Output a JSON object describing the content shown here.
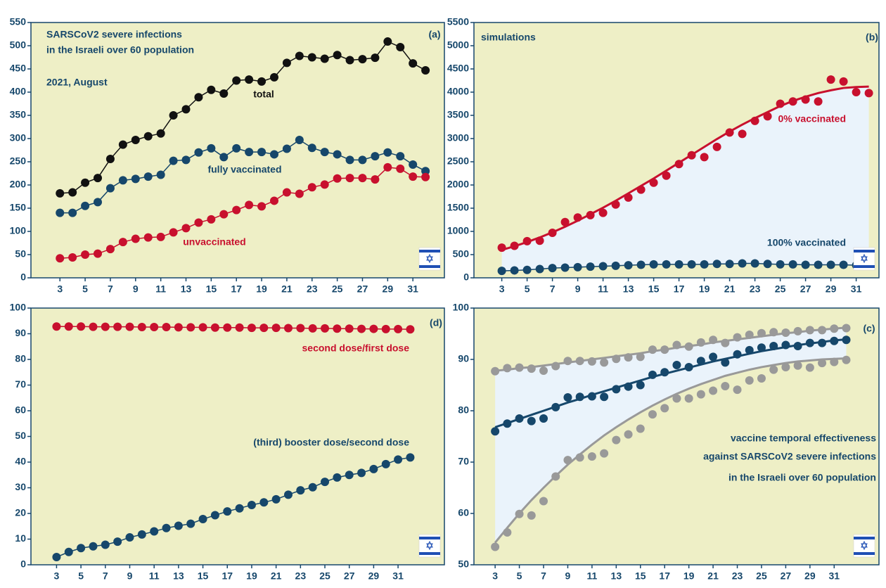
{
  "chart_data": [
    {
      "type": "line",
      "panel_label": "(a)",
      "annotations": [
        "SARSCoV2 severe infections",
        "in the Israeli over 60 population",
        "2021, August"
      ],
      "x": [
        3,
        4,
        5,
        6,
        7,
        8,
        9,
        10,
        11,
        12,
        13,
        14,
        15,
        16,
        17,
        18,
        19,
        20,
        21,
        22,
        23,
        24,
        25,
        26,
        27,
        28,
        29,
        30,
        31,
        32
      ],
      "xlim": [
        0.7,
        33.5
      ],
      "xticks": [
        3,
        5,
        7,
        9,
        11,
        13,
        15,
        17,
        19,
        21,
        23,
        25,
        27,
        29,
        31
      ],
      "ylim": [
        0,
        550
      ],
      "yticks": [
        0,
        50,
        100,
        150,
        200,
        250,
        300,
        350,
        400,
        450,
        500,
        550
      ],
      "connect": true,
      "series": [
        {
          "name": "total",
          "color": "#111111",
          "values": [
            182,
            184,
            205,
            215,
            256,
            287,
            297,
            305,
            311,
            350,
            363,
            389,
            405,
            397,
            425,
            427,
            423,
            432,
            463,
            478,
            475,
            472,
            480,
            469,
            471,
            474,
            509,
            497,
            462,
            447
          ]
        },
        {
          "name": "fully vaccinated",
          "color": "#16476b",
          "values": [
            140,
            140,
            155,
            163,
            193,
            210,
            213,
            218,
            222,
            252,
            254,
            270,
            279,
            260,
            279,
            271,
            271,
            266,
            278,
            297,
            280,
            271,
            266,
            254,
            254,
            262,
            270,
            262,
            244,
            230
          ]
        },
        {
          "name": "unvaccinated",
          "color": "#c8102e",
          "values": [
            42,
            44,
            50,
            52,
            62,
            77,
            84,
            87,
            88,
            98,
            107,
            119,
            126,
            137,
            146,
            157,
            154,
            166,
            184,
            181,
            195,
            201,
            214,
            215,
            215,
            212,
            238,
            235,
            218,
            217
          ]
        }
      ]
    },
    {
      "type": "line",
      "panel_label": "(b)",
      "annotations": [
        "simulations"
      ],
      "x": [
        3,
        4,
        5,
        6,
        7,
        8,
        9,
        10,
        11,
        12,
        13,
        14,
        15,
        16,
        17,
        18,
        19,
        20,
        21,
        22,
        23,
        24,
        25,
        26,
        27,
        28,
        29,
        30,
        31,
        32
      ],
      "xlim": [
        0.8,
        32.8
      ],
      "xticks": [
        3,
        5,
        7,
        9,
        11,
        13,
        15,
        17,
        19,
        21,
        23,
        25,
        27,
        29,
        31
      ],
      "ylim": [
        0,
        5500
      ],
      "yticks": [
        0,
        500,
        1000,
        1500,
        2000,
        2500,
        3000,
        3500,
        4000,
        4500,
        5000,
        5500
      ],
      "shade": true,
      "shade_color": "#eaf3fb",
      "series": [
        {
          "name": "0% vaccinated",
          "color": "#c8102e",
          "values": [
            650,
            690,
            790,
            800,
            970,
            1200,
            1300,
            1350,
            1400,
            1580,
            1730,
            1900,
            2050,
            2200,
            2450,
            2640,
            2600,
            2820,
            3130,
            3100,
            3380,
            3480,
            3750,
            3800,
            3840,
            3800,
            4270,
            4230,
            4000,
            3980
          ],
          "fit": [
            600,
            680,
            770,
            870,
            980,
            1100,
            1230,
            1370,
            1510,
            1660,
            1820,
            1980,
            2140,
            2310,
            2480,
            2650,
            2820,
            2990,
            3150,
            3300,
            3440,
            3570,
            3700,
            3810,
            3900,
            3980,
            4040,
            4090,
            4110,
            4120
          ]
        },
        {
          "name": "100% vaccinated",
          "color": "#16476b",
          "connect": true,
          "values": [
            150,
            160,
            170,
            190,
            210,
            220,
            230,
            240,
            250,
            260,
            270,
            280,
            290,
            290,
            290,
            290,
            290,
            300,
            300,
            310,
            310,
            300,
            290,
            290,
            280,
            280,
            280,
            280,
            270,
            260
          ]
        }
      ]
    },
    {
      "type": "line",
      "panel_label": "(d)",
      "annotations": [],
      "x": [
        3,
        4,
        5,
        6,
        7,
        8,
        9,
        10,
        11,
        12,
        13,
        14,
        15,
        16,
        17,
        18,
        19,
        20,
        21,
        22,
        23,
        24,
        25,
        26,
        27,
        28,
        29,
        30,
        31,
        32
      ],
      "xlim": [
        0.9,
        34.8
      ],
      "xticks": [
        3,
        5,
        7,
        9,
        11,
        13,
        15,
        17,
        19,
        21,
        23,
        25,
        27,
        29,
        31
      ],
      "ylim": [
        0,
        100
      ],
      "yticks": [
        0,
        10,
        20,
        30,
        40,
        50,
        60,
        70,
        80,
        90,
        100
      ],
      "connect": true,
      "series": [
        {
          "name": "second dose/first dose",
          "color": "#c8102e",
          "values": [
            92.8,
            92.8,
            92.8,
            92.7,
            92.7,
            92.7,
            92.7,
            92.6,
            92.6,
            92.6,
            92.5,
            92.5,
            92.5,
            92.4,
            92.4,
            92.4,
            92.3,
            92.3,
            92.3,
            92.2,
            92.2,
            92.1,
            92.1,
            92.0,
            92.0,
            91.9,
            91.9,
            91.8,
            91.8,
            91.7
          ]
        },
        {
          "name": "(third) booster dose/second dose",
          "color": "#16476b",
          "values": [
            3,
            5,
            6.5,
            7.2,
            7.8,
            9,
            10.7,
            11.8,
            13,
            14.3,
            15.2,
            16,
            17.8,
            19.3,
            20.8,
            22,
            23.3,
            24.3,
            25.5,
            27.3,
            29,
            30.2,
            32.3,
            34,
            35,
            35.8,
            37.3,
            39.2,
            41,
            41.8
          ]
        }
      ]
    },
    {
      "type": "line",
      "panel_label": "(c)",
      "annotations": [
        "vaccine temporal effectiveness",
        "against SARSCoV2 severe infections",
        "in the Israeli over 60 population"
      ],
      "x": [
        3,
        4,
        5,
        6,
        7,
        8,
        9,
        10,
        11,
        12,
        13,
        14,
        15,
        16,
        17,
        18,
        19,
        20,
        21,
        22,
        23,
        24,
        25,
        26,
        27,
        28,
        29,
        30,
        31,
        32
      ],
      "xlim": [
        1.25,
        34.7
      ],
      "xticks": [
        3,
        5,
        7,
        9,
        11,
        13,
        15,
        17,
        19,
        21,
        23,
        25,
        27,
        29,
        31
      ],
      "ylim": [
        50,
        100
      ],
      "yticks": [
        50,
        60,
        70,
        80,
        90,
        100
      ],
      "shade": true,
      "shade_color": "#eaf3fb",
      "series": [
        {
          "color": "#999999",
          "values": [
            87.7,
            88.3,
            88.4,
            88.2,
            87.8,
            88.7,
            89.7,
            89.7,
            89.6,
            89.4,
            90.1,
            90.4,
            90.5,
            91.9,
            91.9,
            92.8,
            92.5,
            93.3,
            93.8,
            93.2,
            94.3,
            94.8,
            95.1,
            95.3,
            95.2,
            95.5,
            95.7,
            95.7,
            96,
            96.1
          ],
          "fit": [
            87.8,
            88.0,
            88.3,
            88.5,
            88.8,
            89.1,
            89.4,
            89.7,
            90.0,
            90.3,
            90.6,
            90.9,
            91.2,
            91.6,
            91.9,
            92.3,
            92.6,
            92.9,
            93.3,
            93.6,
            93.9,
            94.2,
            94.5,
            94.8,
            95.1,
            95.3,
            95.6,
            95.8,
            96.0,
            96.2
          ]
        },
        {
          "color": "#16476b",
          "values": [
            76,
            77.5,
            78.5,
            78,
            78.5,
            80.7,
            82.6,
            82.7,
            82.8,
            82.7,
            84.2,
            84.7,
            85,
            87,
            87.5,
            88.9,
            88.5,
            89.7,
            90.5,
            89.4,
            91,
            91.8,
            92.3,
            92.6,
            92.8,
            92.6,
            93.2,
            93.2,
            93.6,
            93.8
          ],
          "fit": [
            76.8,
            77.6,
            78.4,
            79.2,
            80.0,
            80.8,
            81.6,
            82.3,
            83.1,
            83.8,
            84.5,
            85.2,
            85.9,
            86.6,
            87.2,
            87.8,
            88.4,
            89.0,
            89.6,
            90.1,
            90.6,
            91.1,
            91.6,
            92.0,
            92.4,
            92.8,
            93.1,
            93.4,
            93.7,
            93.9
          ]
        },
        {
          "color": "#999999",
          "values": [
            53.5,
            56.3,
            59.9,
            59.6,
            62.4,
            67.2,
            70.4,
            70.9,
            71.1,
            71.7,
            74.3,
            75.4,
            76.5,
            79.3,
            80.5,
            82.4,
            82.4,
            83.2,
            83.9,
            84.8,
            84.1,
            85.9,
            86.3,
            88,
            88.5,
            88.8,
            88.4,
            89.3,
            89.5,
            89.9
          ],
          "fit": [
            54.3,
            57.2,
            60.0,
            62.6,
            65.0,
            67.3,
            69.5,
            71.5,
            73.4,
            75.2,
            76.8,
            78.3,
            79.7,
            81.0,
            82.2,
            83.3,
            84.3,
            85.2,
            86.0,
            86.8,
            87.4,
            88.0,
            88.5,
            88.9,
            89.3,
            89.6,
            89.8,
            90.0,
            90.1,
            90.2
          ]
        }
      ]
    }
  ]
}
